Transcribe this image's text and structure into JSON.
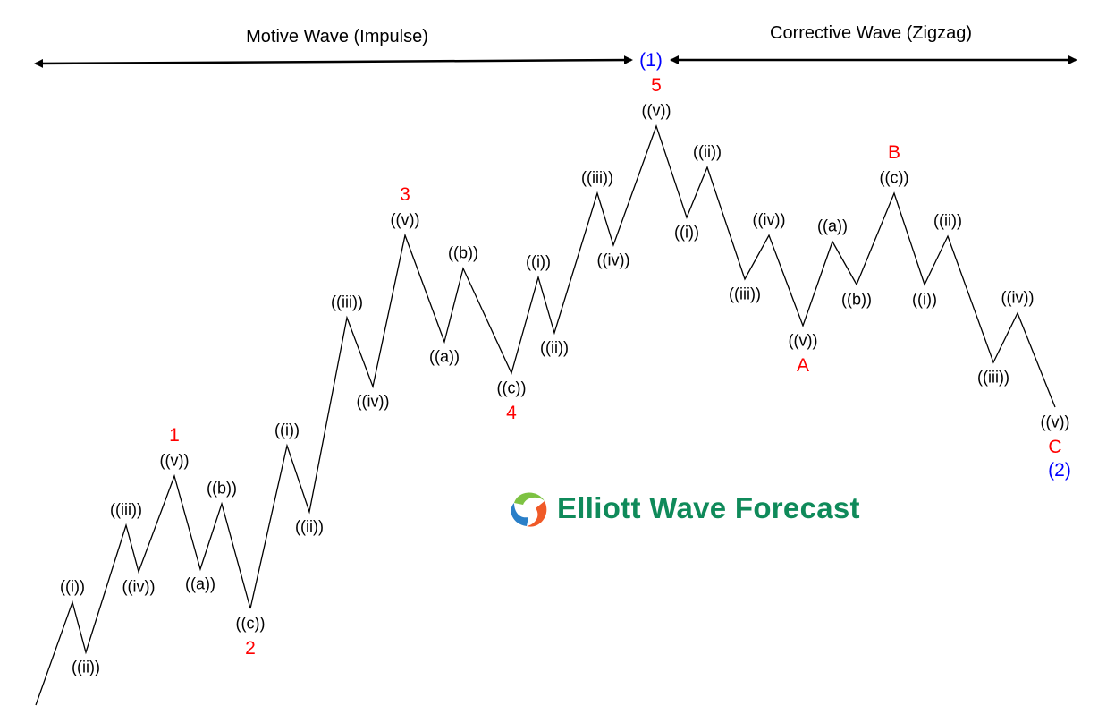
{
  "header": {
    "motive_title": "Motive Wave (Impulse)",
    "corrective_title": "Corrective Wave (Zigzag)",
    "wave1_label": "(1)",
    "wave2_label": "(2)"
  },
  "colors": {
    "subwave": "#000000",
    "degree": "#ff0000",
    "primary": "#0000ff",
    "line": "#000000",
    "logo_text": "#0f8a5a"
  },
  "points": [
    {
      "sub": "",
      "deg": ""
    },
    {
      "sub": "((i))",
      "deg": ""
    },
    {
      "sub": "((ii))",
      "deg": ""
    },
    {
      "sub": "((iii))",
      "deg": ""
    },
    {
      "sub": "((iv))",
      "deg": ""
    },
    {
      "sub": "((v))",
      "deg": "1"
    },
    {
      "sub": "((a))",
      "deg": ""
    },
    {
      "sub": "((b))",
      "deg": ""
    },
    {
      "sub": "((c))",
      "deg": "2"
    },
    {
      "sub": "((i))",
      "deg": ""
    },
    {
      "sub": "((ii))",
      "deg": ""
    },
    {
      "sub": "((iii))",
      "deg": ""
    },
    {
      "sub": "((iv))",
      "deg": ""
    },
    {
      "sub": "((v))",
      "deg": "3"
    },
    {
      "sub": "((a))",
      "deg": ""
    },
    {
      "sub": "((b))",
      "deg": ""
    },
    {
      "sub": "((c))",
      "deg": "4"
    },
    {
      "sub": "((i))",
      "deg": ""
    },
    {
      "sub": "((ii))",
      "deg": ""
    },
    {
      "sub": "((iii))",
      "deg": ""
    },
    {
      "sub": "((iv))",
      "deg": ""
    },
    {
      "sub": "((v))",
      "deg": "5"
    },
    {
      "sub": "((i))",
      "deg": ""
    },
    {
      "sub": "((ii))",
      "deg": ""
    },
    {
      "sub": "((iii))",
      "deg": ""
    },
    {
      "sub": "((iv))",
      "deg": ""
    },
    {
      "sub": "((v))",
      "deg": "A"
    },
    {
      "sub": "((a))",
      "deg": ""
    },
    {
      "sub": "((b))",
      "deg": ""
    },
    {
      "sub": "((c))",
      "deg": "B"
    },
    {
      "sub": "((i))",
      "deg": ""
    },
    {
      "sub": "((ii))",
      "deg": ""
    },
    {
      "sub": "((iii))",
      "deg": ""
    },
    {
      "sub": "((iv))",
      "deg": ""
    },
    {
      "sub": "((v))",
      "deg": "C"
    }
  ],
  "logo": {
    "text": "Elliott Wave Forecast",
    "icon": "swirl-logo-icon"
  }
}
